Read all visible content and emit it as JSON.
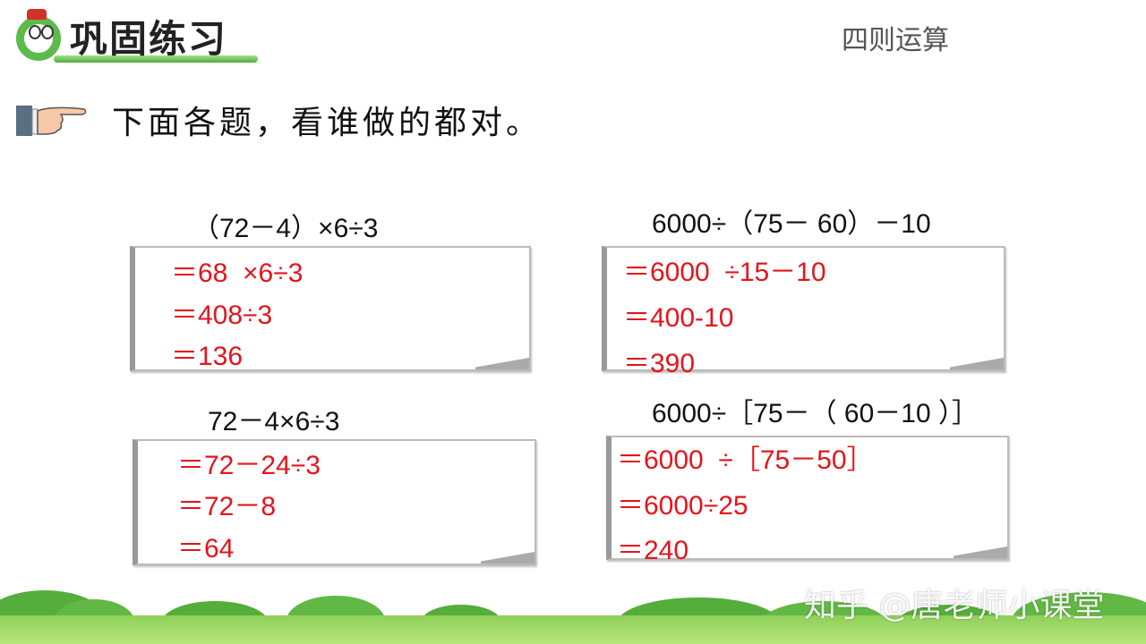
{
  "header": {
    "title": "巩固练习",
    "topic": "四则运算"
  },
  "instruction": "下面各题，看谁做的都对。",
  "problems": [
    {
      "expression": "（72－4）×6÷3",
      "steps": [
        "＝68  ×6÷3",
        "＝408÷3",
        "＝136"
      ]
    },
    {
      "expression": "6000÷（75－ 60）－10",
      "steps": [
        "＝6000  ÷15－10",
        "＝400-10",
        "＝390"
      ]
    },
    {
      "expression": "72－4×6÷3",
      "steps": [
        "＝72－24÷3",
        "＝72－8",
        "＝64"
      ]
    },
    {
      "expression": "6000÷［75－（ 60－10 ）］",
      "steps": [
        "＝6000  ÷［75－50］",
        "＝6000÷25",
        "＝240"
      ]
    }
  ],
  "watermark": "知乎 @唐老师小课堂",
  "colors": {
    "answer": "#e3141d",
    "accent": "#5cbb4a"
  }
}
